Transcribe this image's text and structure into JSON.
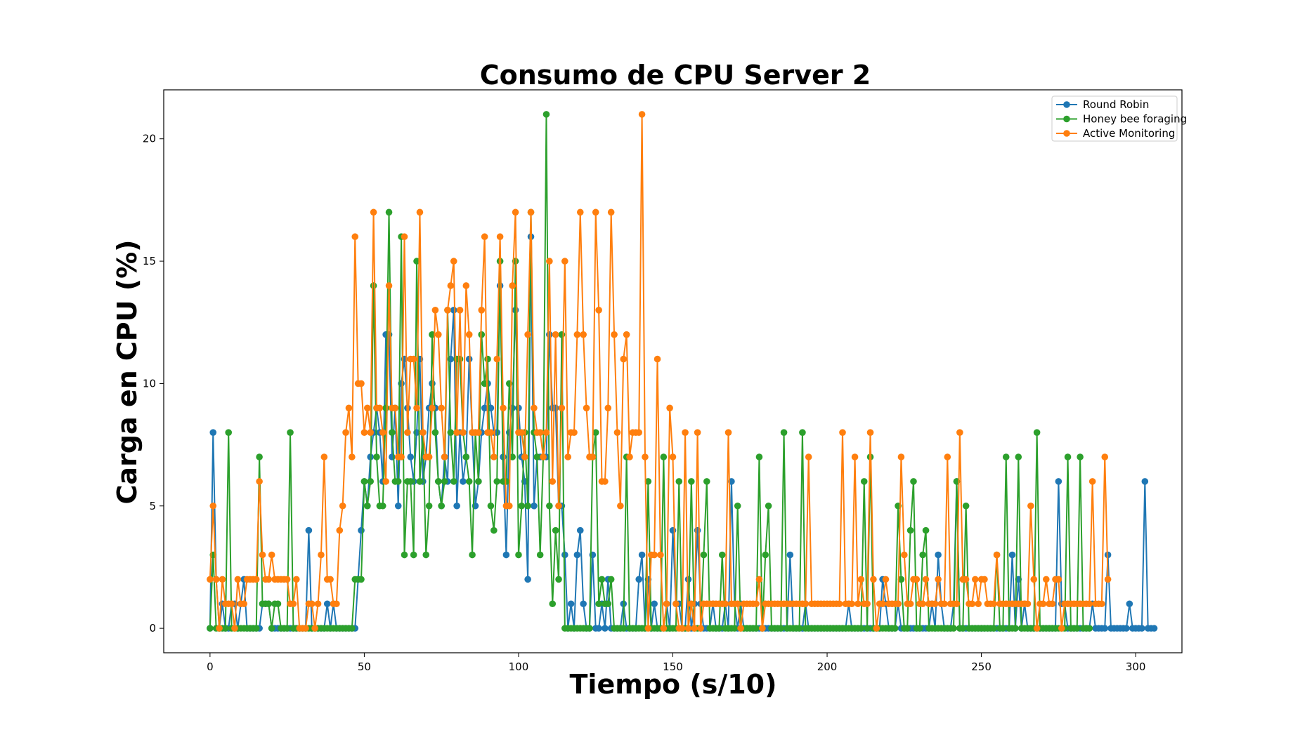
{
  "chart_data": {
    "type": "line",
    "title": "Consumo de CPU Server 2",
    "xlabel": "Tiempo (s/10)",
    "ylabel": "Carga en CPU (%)",
    "xlim": [
      -15,
      315
    ],
    "ylim": [
      -1,
      22
    ],
    "xticks": [
      0,
      50,
      100,
      150,
      200,
      250,
      300
    ],
    "yticks": [
      0,
      5,
      10,
      15,
      20
    ],
    "grid": false,
    "legend_position": "top-right",
    "series": [
      {
        "name": "Round Robin",
        "color": "#1f77b4",
        "values": [
          0,
          8,
          2,
          0,
          1,
          0,
          0,
          1,
          1,
          0,
          1,
          2,
          0,
          0,
          0,
          0,
          0,
          1,
          1,
          1,
          0,
          0,
          0,
          0,
          0,
          0,
          0,
          0,
          0,
          0,
          0,
          0,
          4,
          0,
          0,
          0,
          0,
          0,
          1,
          0,
          1,
          0,
          0,
          0,
          0,
          0,
          0,
          0,
          2,
          4,
          6,
          5,
          7,
          8,
          9,
          8,
          6,
          12,
          12,
          7,
          9,
          5,
          10,
          11,
          9,
          7,
          6,
          8,
          11,
          6,
          7,
          9,
          10,
          9,
          6,
          5,
          7,
          6,
          11,
          13,
          5,
          8,
          6,
          7,
          11,
          8,
          5,
          6,
          8,
          9,
          10,
          9,
          8,
          8,
          14,
          7,
          3,
          8,
          9,
          13,
          9,
          7,
          6,
          2,
          16,
          5,
          7,
          7,
          7,
          7,
          12,
          9,
          9,
          5,
          5,
          3,
          0,
          1,
          0,
          3,
          4,
          1,
          0,
          0,
          3,
          0,
          0,
          1,
          0,
          2,
          0,
          0,
          0,
          0,
          1,
          0,
          0,
          0,
          0,
          2,
          3,
          0,
          2,
          0,
          1,
          0,
          0,
          0,
          1,
          0,
          4,
          1,
          1,
          0,
          0,
          2,
          0,
          1,
          4,
          1,
          0,
          0,
          0,
          1,
          0,
          0,
          0,
          1,
          0,
          6,
          1,
          0,
          1,
          0,
          0,
          0,
          0,
          0,
          0,
          0,
          0,
          0,
          0,
          0,
          0,
          0,
          0,
          0,
          3,
          0,
          0,
          0,
          0,
          1,
          0,
          0,
          0,
          0,
          0,
          0,
          0,
          0,
          0,
          0,
          0,
          0,
          0,
          1,
          0,
          0,
          0,
          0,
          0,
          0,
          0,
          0,
          0,
          0,
          2,
          1,
          0,
          0,
          0,
          1,
          0,
          0,
          0,
          0,
          0,
          0,
          0,
          0,
          0,
          0,
          1,
          0,
          3,
          1,
          0,
          0,
          0,
          1,
          6,
          0,
          0,
          0,
          0,
          0,
          0,
          0,
          0,
          0,
          0,
          0,
          0,
          0,
          0,
          0,
          0,
          0,
          3,
          0,
          2,
          0,
          1,
          0,
          0,
          0,
          0,
          0,
          0,
          0,
          0,
          0,
          0,
          6,
          1,
          1,
          0,
          0,
          0,
          0,
          0,
          0,
          0,
          0,
          1,
          0,
          0,
          0,
          0,
          3,
          0,
          0,
          0,
          0,
          0,
          0,
          1,
          0,
          0,
          0,
          0,
          6,
          0,
          0,
          0
        ],
        "x_start": 0
      },
      {
        "name": "Honey bee foraging",
        "color": "#2ca02c",
        "values": [
          0,
          3,
          0,
          0,
          0,
          0,
          8,
          0,
          0,
          0,
          0,
          0,
          0,
          0,
          0,
          0,
          7,
          1,
          1,
          1,
          0,
          1,
          1,
          0,
          0,
          0,
          8,
          0,
          0,
          0,
          0,
          0,
          0,
          0,
          0,
          0,
          0,
          0,
          0,
          0,
          0,
          0,
          0,
          0,
          0,
          0,
          0,
          2,
          2,
          2,
          6,
          5,
          6,
          14,
          7,
          5,
          5,
          9,
          17,
          8,
          6,
          6,
          16,
          3,
          6,
          6,
          3,
          15,
          6,
          8,
          3,
          5,
          12,
          8,
          6,
          5,
          6,
          13,
          8,
          6,
          11,
          11,
          8,
          7,
          6,
          3,
          8,
          6,
          12,
          10,
          11,
          5,
          4,
          6,
          15,
          6,
          6,
          10,
          7,
          15,
          3,
          5,
          8,
          5,
          17,
          8,
          7,
          3,
          7,
          21,
          5,
          1,
          4,
          2,
          12,
          0,
          0,
          0,
          0,
          0,
          0,
          0,
          0,
          0,
          7,
          8,
          1,
          2,
          1,
          1,
          2,
          0,
          0,
          0,
          0,
          7,
          0,
          0,
          0,
          0,
          0,
          0,
          6,
          0,
          0,
          0,
          0,
          7,
          0,
          0,
          0,
          0,
          6,
          0,
          0,
          0,
          6,
          0,
          0,
          0,
          3,
          6,
          0,
          0,
          0,
          0,
          3,
          0,
          0,
          0,
          0,
          5,
          0,
          0,
          0,
          0,
          0,
          0,
          7,
          0,
          3,
          5,
          0,
          0,
          0,
          0,
          8,
          0,
          0,
          0,
          0,
          0,
          8,
          0,
          0,
          0,
          0,
          0,
          0,
          0,
          0,
          0,
          0,
          0,
          0,
          0,
          0,
          0,
          0,
          0,
          0,
          0,
          6,
          0,
          7,
          0,
          0,
          0,
          0,
          0,
          0,
          0,
          0,
          5,
          2,
          0,
          0,
          4,
          6,
          0,
          0,
          3,
          4,
          0,
          0,
          0,
          0,
          0,
          0,
          0,
          0,
          0,
          6,
          0,
          0,
          5,
          0,
          0,
          0,
          0,
          0,
          0,
          0,
          0,
          0,
          3,
          0,
          0,
          7,
          0,
          0,
          0,
          7,
          0,
          0,
          0,
          0,
          0,
          8,
          0,
          0,
          0,
          0,
          0,
          0,
          0,
          0,
          0,
          7,
          0,
          0,
          0,
          7,
          0,
          0,
          0
        ],
        "x_start": 0
      },
      {
        "name": "Active Monitoring",
        "color": "#ff7f0e",
        "values": [
          2,
          5,
          2,
          0,
          2,
          1,
          1,
          1,
          0,
          2,
          1,
          1,
          2,
          2,
          2,
          2,
          6,
          3,
          2,
          2,
          3,
          2,
          2,
          2,
          2,
          2,
          1,
          1,
          2,
          0,
          0,
          0,
          1,
          1,
          0,
          1,
          3,
          7,
          2,
          2,
          1,
          1,
          4,
          5,
          8,
          9,
          7,
          16,
          10,
          10,
          8,
          9,
          8,
          17,
          9,
          9,
          8,
          6,
          14,
          9,
          9,
          7,
          7,
          16,
          8,
          11,
          11,
          9,
          17,
          8,
          7,
          7,
          9,
          13,
          12,
          9,
          7,
          13,
          14,
          15,
          8,
          13,
          8,
          14,
          12,
          8,
          8,
          8,
          13,
          16,
          8,
          8,
          7,
          11,
          16,
          9,
          5,
          5,
          14,
          17,
          8,
          8,
          7,
          12,
          17,
          9,
          8,
          8,
          7,
          8,
          15,
          6,
          12,
          5,
          9,
          15,
          7,
          8,
          8,
          12,
          17,
          12,
          9,
          7,
          7,
          17,
          13,
          6,
          6,
          9,
          17,
          12,
          8,
          5,
          11,
          12,
          7,
          8,
          8,
          8,
          21,
          7,
          0,
          3,
          3,
          11,
          3,
          0,
          1,
          9,
          7,
          1,
          0,
          0,
          8,
          0,
          1,
          0,
          8,
          0,
          1,
          1,
          1,
          1,
          1,
          1,
          1,
          1,
          8,
          1,
          1,
          1,
          0,
          1,
          1,
          1,
          1,
          1,
          2,
          0,
          1,
          1,
          1,
          1,
          1,
          1,
          1,
          1,
          1,
          1,
          1,
          1,
          1,
          1,
          7,
          1,
          1,
          1,
          1,
          1,
          1,
          1,
          1,
          1,
          1,
          8,
          1,
          1,
          1,
          7,
          1,
          2,
          1,
          1,
          8,
          2,
          0,
          1,
          1,
          2,
          1,
          1,
          1,
          1,
          7,
          3,
          1,
          1,
          2,
          2,
          1,
          1,
          2,
          1,
          1,
          1,
          2,
          1,
          1,
          7,
          1,
          1,
          1,
          8,
          2,
          2,
          1,
          1,
          2,
          1,
          2,
          2,
          1,
          1,
          1,
          3,
          1,
          1,
          1,
          1,
          1,
          1,
          1,
          1,
          1,
          1,
          5,
          2,
          0,
          1,
          1,
          2,
          1,
          1,
          2,
          2,
          0,
          1,
          1,
          1,
          1,
          1,
          1,
          1,
          1,
          1,
          6,
          1,
          1,
          1,
          7,
          2
        ],
        "x_start": 0
      }
    ]
  }
}
